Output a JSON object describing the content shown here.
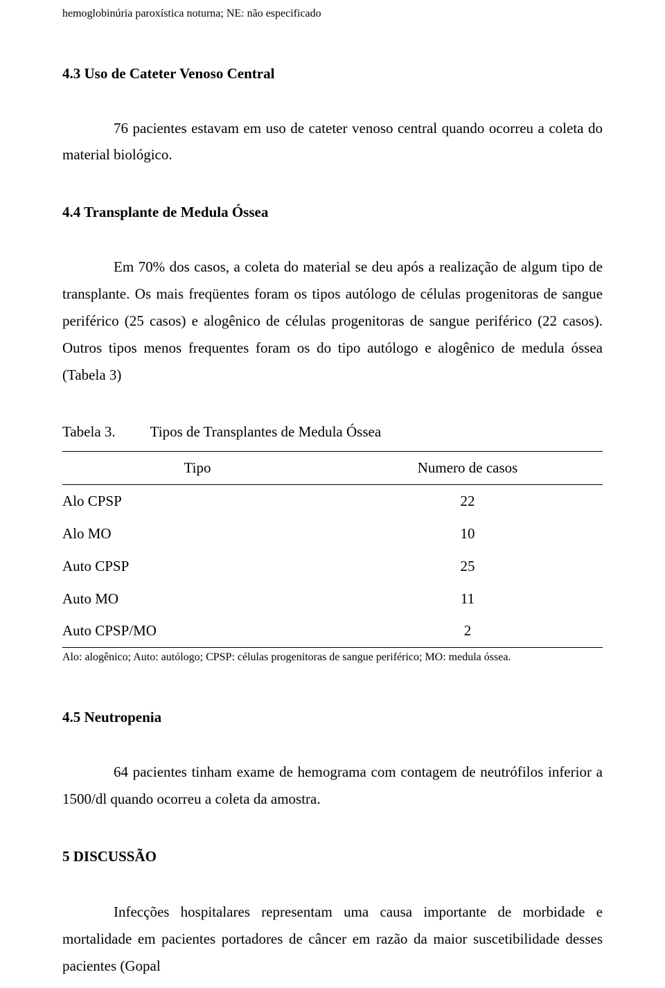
{
  "footnote_top": "hemoglobinúria paroxística noturna; NE: não especificado",
  "section_4_3": {
    "heading": "4.3  Uso de Cateter Venoso Central",
    "para": "76 pacientes estavam em uso de cateter venoso central quando ocorreu a coleta do material biológico."
  },
  "section_4_4": {
    "heading": "4.4  Transplante de Medula Óssea",
    "para": "Em 70% dos casos, a coleta do material se deu após a realização de algum tipo de transplante. Os mais freqüentes foram os tipos autólogo de células progenitoras de sangue periférico (25 casos) e alogênico de células progenitoras de sangue periférico (22 casos). Outros tipos menos frequentes foram os do tipo autólogo e alogênico de medula óssea (Tabela 3)"
  },
  "table3": {
    "label": "Tabela 3.",
    "title": "Tipos de Transplantes de Medula Óssea",
    "col_type": "Tipo",
    "col_num": "Numero de casos",
    "rows": [
      {
        "type": "Alo CPSP",
        "num": "22"
      },
      {
        "type": "Alo MO",
        "num": "10"
      },
      {
        "type": "Auto CPSP",
        "num": "25"
      },
      {
        "type": "Auto MO",
        "num": "11"
      },
      {
        "type": "Auto CPSP/MO",
        "num": "2"
      }
    ],
    "footnote": "Alo: alogênico; Auto: autólogo; CPSP: células progenitoras de sangue periférico; MO: medula óssea."
  },
  "section_4_5": {
    "heading": "4.5  Neutropenia",
    "para": "64 pacientes tinham exame de hemograma com contagem de neutrófilos inferior a 1500/dl quando ocorreu a coleta da amostra."
  },
  "section_5": {
    "heading": "5   DISCUSSÃO",
    "para": "Infecções hospitalares representam uma causa importante de morbidade e mortalidade em pacientes portadores de câncer em razão da maior suscetibilidade desses pacientes (Gopal"
  }
}
